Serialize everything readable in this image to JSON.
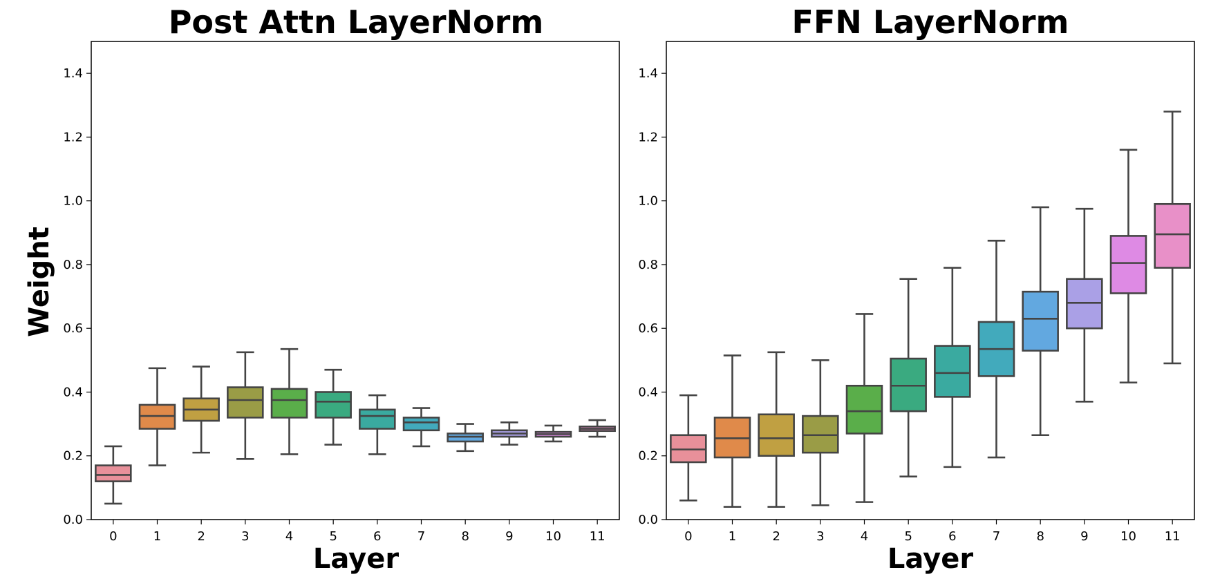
{
  "chart_data": [
    {
      "type": "box",
      "title": "Post Attn LayerNorm",
      "xlabel": "Layer",
      "ylabel": "Weight",
      "ylim": [
        0.0,
        1.5
      ],
      "yticks": [
        "0.0",
        "0.2",
        "0.4",
        "0.6",
        "0.8",
        "1.0",
        "1.2",
        "1.4"
      ],
      "categories": [
        "0",
        "1",
        "2",
        "3",
        "4",
        "5",
        "6",
        "7",
        "8",
        "9",
        "10",
        "11"
      ],
      "colors": [
        "#e8909a",
        "#e08a4a",
        "#c0a042",
        "#9a9c46",
        "#5aae4a",
        "#3aaa80",
        "#3aaaa0",
        "#42aabc",
        "#62a8e0",
        "#aaa0e6",
        "#de8ae4",
        "#e890c8"
      ],
      "boxes": [
        {
          "whislo": 0.05,
          "q1": 0.12,
          "med": 0.14,
          "q3": 0.17,
          "whishi": 0.23
        },
        {
          "whislo": 0.17,
          "q1": 0.285,
          "med": 0.325,
          "q3": 0.36,
          "whishi": 0.475
        },
        {
          "whislo": 0.21,
          "q1": 0.31,
          "med": 0.345,
          "q3": 0.38,
          "whishi": 0.48
        },
        {
          "whislo": 0.19,
          "q1": 0.32,
          "med": 0.375,
          "q3": 0.415,
          "whishi": 0.525
        },
        {
          "whislo": 0.205,
          "q1": 0.32,
          "med": 0.375,
          "q3": 0.41,
          "whishi": 0.535
        },
        {
          "whislo": 0.235,
          "q1": 0.32,
          "med": 0.37,
          "q3": 0.4,
          "whishi": 0.47
        },
        {
          "whislo": 0.205,
          "q1": 0.285,
          "med": 0.325,
          "q3": 0.345,
          "whishi": 0.39
        },
        {
          "whislo": 0.23,
          "q1": 0.28,
          "med": 0.305,
          "q3": 0.32,
          "whishi": 0.35
        },
        {
          "whislo": 0.215,
          "q1": 0.245,
          "med": 0.26,
          "q3": 0.27,
          "whishi": 0.3
        },
        {
          "whislo": 0.235,
          "q1": 0.26,
          "med": 0.27,
          "q3": 0.28,
          "whishi": 0.305
        },
        {
          "whislo": 0.245,
          "q1": 0.26,
          "med": 0.268,
          "q3": 0.275,
          "whishi": 0.295
        },
        {
          "whislo": 0.26,
          "q1": 0.278,
          "med": 0.285,
          "q3": 0.292,
          "whishi": 0.312
        }
      ]
    },
    {
      "type": "box",
      "title": "FFN LayerNorm",
      "xlabel": "Layer",
      "ylabel": "",
      "ylim": [
        0.0,
        1.5
      ],
      "yticks": [
        "0.0",
        "0.2",
        "0.4",
        "0.6",
        "0.8",
        "1.0",
        "1.2",
        "1.4"
      ],
      "categories": [
        "0",
        "1",
        "2",
        "3",
        "4",
        "5",
        "6",
        "7",
        "8",
        "9",
        "10",
        "11"
      ],
      "colors": [
        "#e8909a",
        "#e08a4a",
        "#c0a042",
        "#9a9c46",
        "#5aae4a",
        "#3aaa80",
        "#3aaaa0",
        "#42aabc",
        "#62a8e0",
        "#aaa0e6",
        "#de8ae4",
        "#e890c8"
      ],
      "boxes": [
        {
          "whislo": 0.06,
          "q1": 0.18,
          "med": 0.22,
          "q3": 0.265,
          "whishi": 0.39
        },
        {
          "whislo": 0.04,
          "q1": 0.195,
          "med": 0.255,
          "q3": 0.32,
          "whishi": 0.515
        },
        {
          "whislo": 0.04,
          "q1": 0.2,
          "med": 0.255,
          "q3": 0.33,
          "whishi": 0.525
        },
        {
          "whislo": 0.045,
          "q1": 0.21,
          "med": 0.265,
          "q3": 0.325,
          "whishi": 0.5
        },
        {
          "whislo": 0.055,
          "q1": 0.27,
          "med": 0.34,
          "q3": 0.42,
          "whishi": 0.645
        },
        {
          "whislo": 0.135,
          "q1": 0.34,
          "med": 0.42,
          "q3": 0.505,
          "whishi": 0.755
        },
        {
          "whislo": 0.165,
          "q1": 0.385,
          "med": 0.46,
          "q3": 0.545,
          "whishi": 0.79
        },
        {
          "whislo": 0.195,
          "q1": 0.45,
          "med": 0.535,
          "q3": 0.62,
          "whishi": 0.875
        },
        {
          "whislo": 0.265,
          "q1": 0.53,
          "med": 0.63,
          "q3": 0.715,
          "whishi": 0.98
        },
        {
          "whislo": 0.37,
          "q1": 0.6,
          "med": 0.68,
          "q3": 0.755,
          "whishi": 0.975
        },
        {
          "whislo": 0.43,
          "q1": 0.71,
          "med": 0.805,
          "q3": 0.89,
          "whishi": 1.16
        },
        {
          "whislo": 0.49,
          "q1": 0.79,
          "med": 0.895,
          "q3": 0.99,
          "whishi": 1.28
        }
      ]
    }
  ]
}
